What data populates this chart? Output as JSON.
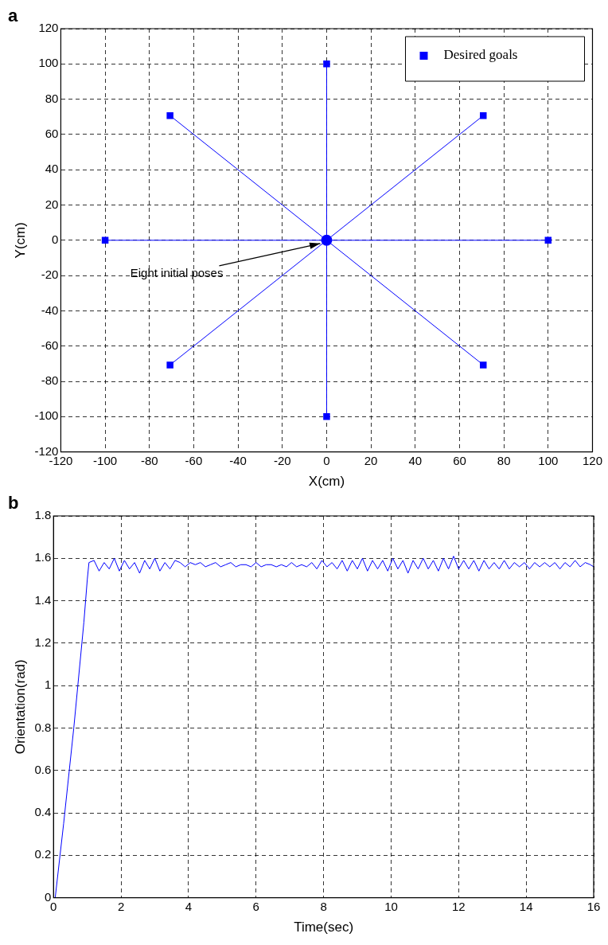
{
  "chart_data": [
    {
      "type": "scatter",
      "xlabel": "X(cm)",
      "ylabel": "Y(cm)",
      "xlim": [
        -120,
        120
      ],
      "ylim": [
        -120,
        120
      ],
      "xticks": [
        -120,
        -100,
        -80,
        -60,
        -40,
        -20,
        0,
        20,
        40,
        60,
        80,
        100,
        120
      ],
      "yticks": [
        -120,
        -100,
        -80,
        -60,
        -40,
        -20,
        0,
        20,
        40,
        60,
        80,
        100,
        120
      ],
      "grid": true,
      "legend": "top right",
      "annotations": [
        "a",
        {
          "text": "Eight initial poses",
          "x": 0,
          "y": 0
        }
      ],
      "series": [
        {
          "type": "line",
          "color": "#0000ff",
          "marker": "none",
          "x": [
            0,
            100
          ],
          "values": [
            0,
            0
          ]
        },
        {
          "type": "line",
          "color": "#0000ff",
          "marker": "none",
          "x": [
            0,
            70.7
          ],
          "values": [
            0,
            70.7
          ]
        },
        {
          "type": "line",
          "color": "#0000ff",
          "marker": "none",
          "x": [
            0,
            0
          ],
          "values": [
            0,
            100
          ]
        },
        {
          "type": "line",
          "color": "#0000ff",
          "marker": "none",
          "x": [
            -70.7,
            0
          ],
          "values": [
            70.7,
            0
          ]
        },
        {
          "type": "line",
          "color": "#0000ff",
          "marker": "none",
          "x": [
            -100,
            0
          ],
          "values": [
            0,
            0
          ]
        },
        {
          "type": "line",
          "color": "#0000ff",
          "marker": "none",
          "x": [
            -70.7,
            0
          ],
          "values": [
            -70.7,
            0
          ]
        },
        {
          "type": "line",
          "color": "#0000ff",
          "marker": "none",
          "x": [
            0,
            0
          ],
          "values": [
            -100,
            0
          ]
        },
        {
          "type": "line",
          "color": "#0000ff",
          "marker": "none",
          "x": [
            0,
            70.7
          ],
          "values": [
            0,
            -70.7
          ]
        },
        {
          "type": "scatter",
          "name": "Desired goals",
          "color": "#0000ff",
          "marker": "square",
          "x": [
            100,
            70.7,
            0,
            -70.7,
            -100,
            -70.7,
            0,
            70.7
          ],
          "values": [
            0,
            70.7,
            100,
            70.7,
            0,
            -70.7,
            -100,
            -70.7
          ]
        },
        {
          "type": "scatter",
          "color": "#0000ff",
          "marker": "circle",
          "x": [
            0
          ],
          "values": [
            0
          ]
        }
      ]
    },
    {
      "type": "line",
      "xlabel": "Time(sec)",
      "ylabel": "Orientation(rad)",
      "xlim": [
        0,
        16
      ],
      "ylim": [
        0,
        1.8
      ],
      "xticks": [
        0,
        2,
        4,
        6,
        8,
        10,
        12,
        14,
        16
      ],
      "yticks": [
        0,
        0.2,
        0.4,
        0.6,
        0.8,
        1,
        1.2,
        1.4,
        1.6,
        1.8
      ],
      "grid": true,
      "legend": false,
      "annotations": [
        "b"
      ],
      "series": [
        {
          "color": "#0000ff",
          "marker": "none",
          "x": [
            0,
            0.05,
            0.3,
            0.6,
            0.9,
            1.0,
            1.05,
            1.2,
            1.35,
            1.5,
            1.65,
            1.8,
            1.95,
            2.1,
            2.25,
            2.4,
            2.55,
            2.7,
            2.85,
            3,
            3.15,
            3.3,
            3.45,
            3.6,
            3.75,
            3.9,
            4.05,
            4.2,
            4.35,
            4.5,
            4.65,
            4.8,
            4.95,
            5.1,
            5.25,
            5.4,
            5.55,
            5.7,
            5.85,
            6,
            6.15,
            6.3,
            6.45,
            6.6,
            6.75,
            6.9,
            7.05,
            7.2,
            7.35,
            7.5,
            7.65,
            7.8,
            7.95,
            8.1,
            8.25,
            8.4,
            8.55,
            8.7,
            8.85,
            9,
            9.15,
            9.3,
            9.45,
            9.6,
            9.75,
            9.9,
            10.05,
            10.2,
            10.35,
            10.5,
            10.65,
            10.8,
            10.95,
            11.1,
            11.25,
            11.4,
            11.55,
            11.7,
            11.85,
            12,
            12.15,
            12.3,
            12.45,
            12.6,
            12.75,
            12.9,
            13.05,
            13.2,
            13.35,
            13.5,
            13.65,
            13.8,
            13.95,
            14.1,
            14.25,
            14.4,
            14.55,
            14.7,
            14.85,
            15,
            15.15,
            15.3,
            15.45,
            15.6,
            15.75,
            15.9,
            16
          ],
          "values": [
            0,
            0,
            0.35,
            0.8,
            1.3,
            1.5,
            1.58,
            1.59,
            1.54,
            1.58,
            1.55,
            1.6,
            1.54,
            1.59,
            1.55,
            1.58,
            1.53,
            1.59,
            1.55,
            1.6,
            1.54,
            1.58,
            1.55,
            1.59,
            1.58,
            1.56,
            1.58,
            1.57,
            1.58,
            1.56,
            1.57,
            1.58,
            1.56,
            1.57,
            1.58,
            1.56,
            1.57,
            1.57,
            1.56,
            1.58,
            1.56,
            1.57,
            1.57,
            1.56,
            1.57,
            1.56,
            1.58,
            1.56,
            1.57,
            1.56,
            1.58,
            1.55,
            1.59,
            1.56,
            1.58,
            1.55,
            1.59,
            1.54,
            1.59,
            1.55,
            1.6,
            1.54,
            1.59,
            1.55,
            1.59,
            1.54,
            1.6,
            1.55,
            1.59,
            1.53,
            1.59,
            1.55,
            1.6,
            1.55,
            1.59,
            1.54,
            1.6,
            1.55,
            1.61,
            1.55,
            1.59,
            1.55,
            1.59,
            1.54,
            1.59,
            1.55,
            1.58,
            1.55,
            1.59,
            1.55,
            1.58,
            1.56,
            1.58,
            1.55,
            1.58,
            1.56,
            1.58,
            1.56,
            1.58,
            1.55,
            1.58,
            1.56,
            1.59,
            1.56,
            1.58,
            1.57,
            1.56
          ]
        }
      ]
    }
  ]
}
